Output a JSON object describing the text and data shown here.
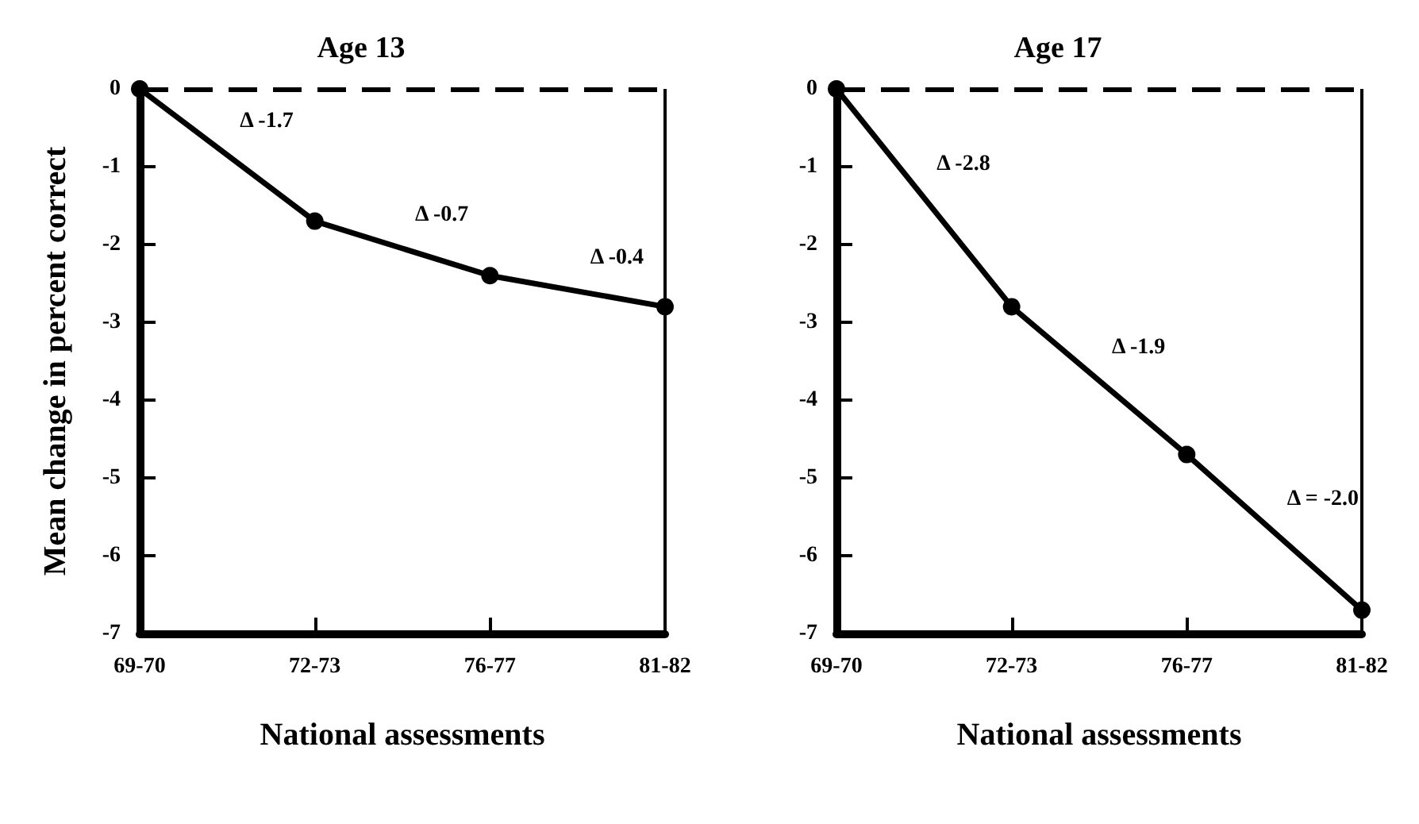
{
  "chart_data": [
    {
      "type": "line",
      "title": "Age 13",
      "xlabel": "National assessments",
      "ylabel": "Mean change in percent correct",
      "categories": [
        "69-70",
        "72-73",
        "76-77",
        "81-82"
      ],
      "series": [
        {
          "color": "#000000",
          "values": [
            0,
            -1.7,
            -2.4,
            -2.8
          ]
        }
      ],
      "ylim": [
        -7,
        0
      ],
      "yticks": [
        -7,
        -6,
        -5,
        -4,
        -3,
        -2,
        -1,
        0
      ],
      "marker": "circle",
      "line_style": "solid",
      "grid": false,
      "ref_lines": [
        {
          "axis": "y",
          "value": 0,
          "label": null,
          "line_style": "dashed"
        }
      ],
      "annotations": [
        "Δ -1.7",
        "Δ -0.7",
        "Δ -0.4"
      ]
    },
    {
      "type": "line",
      "title": "Age 17",
      "xlabel": "National assessments",
      "categories": [
        "69-70",
        "72-73",
        "76-77",
        "81-82"
      ],
      "series": [
        {
          "color": "#000000",
          "values": [
            0,
            -2.8,
            -4.7,
            -6.7
          ]
        }
      ],
      "ylim": [
        -7,
        0
      ],
      "yticks": [
        -7,
        -6,
        -5,
        -4,
        -3,
        -2,
        -1,
        0
      ],
      "marker": "circle",
      "line_style": "solid",
      "grid": false,
      "ref_lines": [
        {
          "axis": "y",
          "value": 0,
          "label": null,
          "line_style": "dashed"
        }
      ],
      "annotations": [
        "Δ -2.8",
        "Δ -1.9",
        "Δ = -2.0"
      ]
    }
  ]
}
